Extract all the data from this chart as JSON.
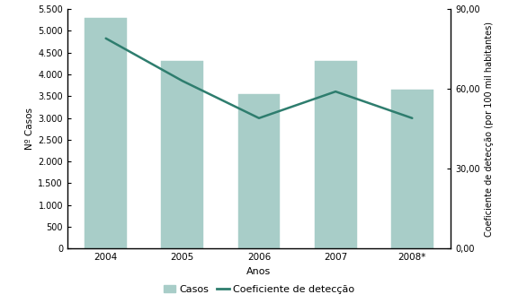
{
  "years": [
    "2004",
    "2005",
    "2006",
    "2007",
    "2008*"
  ],
  "casos": [
    5300,
    4300,
    3550,
    4300,
    3650
  ],
  "coeficiente": [
    79,
    63,
    49,
    59,
    49
  ],
  "bar_color": "#a8cdc8",
  "bar_edgecolor": "#a8cdc8",
  "line_color": "#2e7d6e",
  "line_width": 1.8,
  "ylabel_left": "Nº Casos",
  "ylabel_right": "Coeficiente de detecção (por 100 mil habitantes)",
  "xlabel": "Anos",
  "ylim_left": [
    0,
    5500
  ],
  "ylim_right": [
    0,
    90
  ],
  "yticks_left": [
    0,
    500,
    1000,
    1500,
    2000,
    2500,
    3000,
    3500,
    4000,
    4500,
    5000,
    5500
  ],
  "yticks_right": [
    0,
    30,
    60,
    90
  ],
  "ytick_labels_right": [
    "0,00",
    "30,00",
    "60,00",
    "90,00"
  ],
  "ytick_labels_left": [
    "0",
    "500",
    "1.000",
    "1.500",
    "2.000",
    "2.500",
    "3.000",
    "3.500",
    "4.000",
    "4.500",
    "5.000",
    "5.500"
  ],
  "legend_casos": "Casos",
  "legend_coef": "Coeficiente de detecção",
  "background_color": "#ffffff",
  "spine_color": "#000000",
  "tick_color": "#000000",
  "fontsize_ticks": 7,
  "fontsize_ylabel": 7.5,
  "fontsize_xlabel": 8,
  "fontsize_legend": 8
}
